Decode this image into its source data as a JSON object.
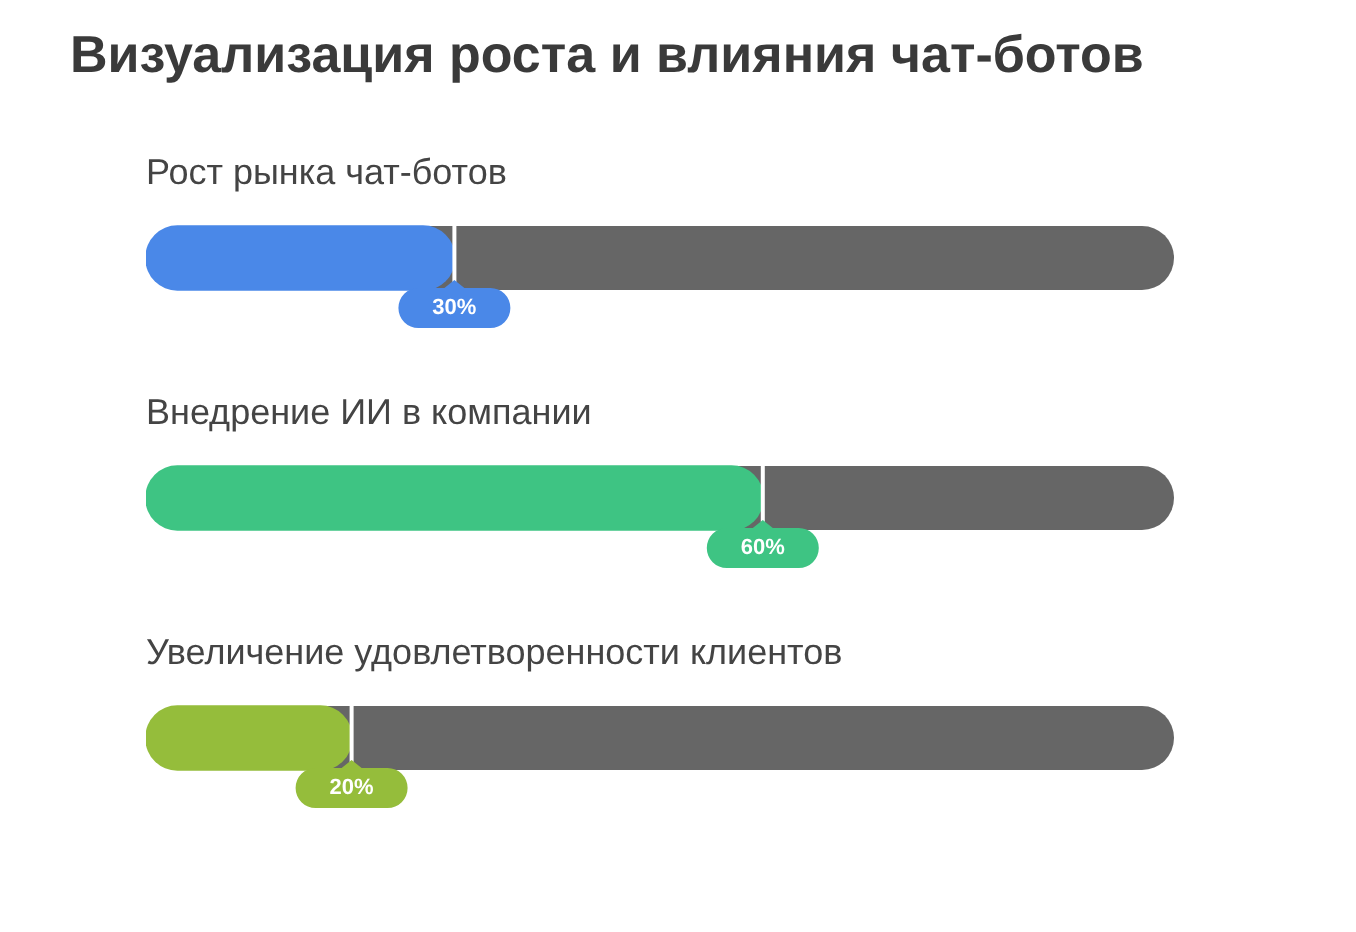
{
  "chart_data": {
    "type": "bar",
    "orientation": "horizontal",
    "title": "Визуализация роста и влияния чат-ботов",
    "categories": [
      "Рост рынка чат-ботов",
      "Внедрение ИИ в компании",
      "Увеличение удовлетворенности клиентов"
    ],
    "values": [
      30,
      60,
      20
    ],
    "colors": [
      "#4a88e8",
      "#3ec483",
      "#95bd3b"
    ],
    "value_labels": [
      "30%",
      "60%",
      "20%"
    ],
    "xlim": [
      0,
      100
    ],
    "legend": false
  }
}
